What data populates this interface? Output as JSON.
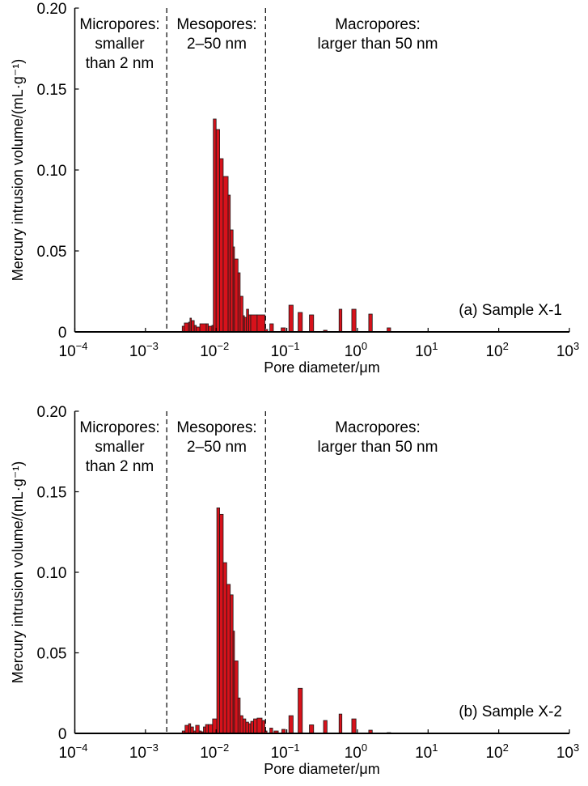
{
  "chart_data": [
    {
      "type": "bar",
      "panel_label": "(a) Sample X-1",
      "xlabel": "Pore diameter/μm",
      "ylabel": "Mercury intrusion volume/(mL·g⁻¹)",
      "x_scale": "log10",
      "xlim_log10": [
        -4,
        3
      ],
      "ylim": [
        0,
        0.2
      ],
      "x_ticks": [
        {
          "base": "10",
          "exp": "−4"
        },
        {
          "base": "10",
          "exp": "−3"
        },
        {
          "base": "10",
          "exp": "−2"
        },
        {
          "base": "10",
          "exp": "−1"
        },
        {
          "base": "10",
          "exp": "0"
        },
        {
          "base": "10",
          "exp": "1"
        },
        {
          "base": "10",
          "exp": "2"
        },
        {
          "base": "10",
          "exp": "3"
        }
      ],
      "y_ticks": [
        "0",
        "0.05",
        "0.10",
        "0.15",
        "0.20"
      ],
      "y_tick_values": [
        0,
        0.05,
        0.1,
        0.15,
        0.2
      ],
      "boundaries_um": [
        0.002,
        0.05
      ],
      "regions": [
        {
          "lines": [
            "Micropores:",
            "smaller",
            "than 2 nm"
          ]
        },
        {
          "lines": [
            "Mesopores:",
            "2–50 nm"
          ]
        },
        {
          "lines": [
            "Macropores:",
            "larger than 50 nm"
          ]
        }
      ],
      "bar_format": "[log10 diameter lo (μm), log10 diameter hi (μm), volume mL/g]",
      "bars": [
        [
          -2.48,
          -2.45,
          0.0035
        ],
        [
          -2.45,
          -2.39,
          0.0055
        ],
        [
          -2.39,
          -2.37,
          0.006
        ],
        [
          -2.37,
          -2.35,
          0.0085
        ],
        [
          -2.35,
          -2.31,
          0.007
        ],
        [
          -2.31,
          -2.28,
          0.004
        ],
        [
          -2.28,
          -2.23,
          0.003
        ],
        [
          -2.23,
          -2.14,
          0.005
        ],
        [
          -2.14,
          -2.11,
          0.005
        ],
        [
          -2.11,
          -2.06,
          0.0035
        ],
        [
          -2.06,
          -2.04,
          0.004
        ],
        [
          -2.04,
          -2.0,
          0.1315
        ],
        [
          -2.0,
          -1.95,
          0.125
        ],
        [
          -1.95,
          -1.9,
          0.107
        ],
        [
          -1.9,
          -1.83,
          0.096
        ],
        [
          -1.83,
          -1.8,
          0.0845
        ],
        [
          -1.8,
          -1.76,
          0.063
        ],
        [
          -1.76,
          -1.74,
          0.0525
        ],
        [
          -1.74,
          -1.69,
          0.045
        ],
        [
          -1.69,
          -1.66,
          0.0365
        ],
        [
          -1.66,
          -1.62,
          0.022
        ],
        [
          -1.62,
          -1.6,
          0.01
        ],
        [
          -1.6,
          -1.57,
          0.009
        ],
        [
          -1.57,
          -1.54,
          0.014
        ],
        [
          -1.54,
          -1.51,
          0.0105
        ],
        [
          -1.51,
          -1.42,
          0.0105
        ],
        [
          -1.42,
          -1.31,
          0.0105
        ],
        [
          -1.31,
          -1.27,
          0.0015
        ],
        [
          -1.24,
          -1.19,
          0.005
        ],
        [
          -1.08,
          -1.02,
          0.0025
        ],
        [
          -0.97,
          -0.91,
          0.0165
        ],
        [
          -0.84,
          -0.78,
          0.012
        ],
        [
          -0.68,
          -0.62,
          0.0105
        ],
        [
          -0.48,
          -0.43,
          0.001
        ],
        [
          -0.26,
          -0.22,
          0.014
        ],
        [
          -0.08,
          -0.02,
          0.014
        ],
        [
          0.16,
          0.21,
          0.011
        ],
        [
          0.42,
          0.47,
          0.0025
        ]
      ],
      "bar_color": "#d7121b"
    },
    {
      "type": "bar",
      "panel_label": "(b) Sample X-2",
      "xlabel": "Pore diameter/μm",
      "ylabel": "Mercury intrusion volume/(mL·g⁻¹)",
      "x_scale": "log10",
      "xlim_log10": [
        -4,
        3
      ],
      "ylim": [
        0,
        0.2
      ],
      "x_ticks": [
        {
          "base": "10",
          "exp": "−4"
        },
        {
          "base": "10",
          "exp": "−3"
        },
        {
          "base": "10",
          "exp": "−2"
        },
        {
          "base": "10",
          "exp": "−1"
        },
        {
          "base": "10",
          "exp": "0"
        },
        {
          "base": "10",
          "exp": "1"
        },
        {
          "base": "10",
          "exp": "2"
        },
        {
          "base": "10",
          "exp": "3"
        }
      ],
      "y_ticks": [
        "0",
        "0.05",
        "0.10",
        "0.15",
        "0.20"
      ],
      "y_tick_values": [
        0,
        0.05,
        0.1,
        0.15,
        0.2
      ],
      "boundaries_um": [
        0.002,
        0.05
      ],
      "regions": [
        {
          "lines": [
            "Micropores:",
            "smaller",
            "than 2 nm"
          ]
        },
        {
          "lines": [
            "Mesopores:",
            "2–50 nm"
          ]
        },
        {
          "lines": [
            "Macropores:",
            "larger than 50 nm"
          ]
        }
      ],
      "bar_format": "[log10 diameter lo (μm), log10 diameter hi (μm), volume mL/g]",
      "bars": [
        [
          -2.48,
          -2.44,
          0.0015
        ],
        [
          -2.44,
          -2.39,
          0.005
        ],
        [
          -2.39,
          -2.36,
          0.006
        ],
        [
          -2.36,
          -2.32,
          0.004
        ],
        [
          -2.32,
          -2.29,
          0.0015
        ],
        [
          -2.29,
          -2.24,
          0.005
        ],
        [
          -2.24,
          -2.21,
          0.0015
        ],
        [
          -2.21,
          -2.18,
          0.001
        ],
        [
          -2.18,
          -2.15,
          0.004
        ],
        [
          -2.15,
          -2.11,
          0.0055
        ],
        [
          -2.11,
          -2.05,
          0.0055
        ],
        [
          -2.05,
          -1.99,
          0.009
        ],
        [
          -1.99,
          -1.95,
          0.14
        ],
        [
          -1.95,
          -1.9,
          0.136
        ],
        [
          -1.9,
          -1.85,
          0.106
        ],
        [
          -1.85,
          -1.8,
          0.0925
        ],
        [
          -1.8,
          -1.76,
          0.086
        ],
        [
          -1.76,
          -1.74,
          0.0635
        ],
        [
          -1.74,
          -1.69,
          0.045
        ],
        [
          -1.69,
          -1.66,
          0.022
        ],
        [
          -1.66,
          -1.62,
          0.011
        ],
        [
          -1.62,
          -1.58,
          0.009
        ],
        [
          -1.58,
          -1.54,
          0.007
        ],
        [
          -1.54,
          -1.51,
          0.006
        ],
        [
          -1.51,
          -1.47,
          0.0075
        ],
        [
          -1.47,
          -1.42,
          0.009
        ],
        [
          -1.42,
          -1.35,
          0.0095
        ],
        [
          -1.35,
          -1.31,
          0.008
        ],
        [
          -1.31,
          -1.28,
          0.0015
        ],
        [
          -1.24,
          -1.2,
          0.0033
        ],
        [
          -1.18,
          -1.12,
          0.0015
        ],
        [
          -1.07,
          -1.02,
          0.0025
        ],
        [
          -0.97,
          -0.91,
          0.011
        ],
        [
          -0.84,
          -0.78,
          0.028
        ],
        [
          -0.68,
          -0.62,
          0.0053
        ],
        [
          -0.48,
          -0.43,
          0.008
        ],
        [
          -0.26,
          -0.22,
          0.012
        ],
        [
          -0.08,
          -0.02,
          0.009
        ],
        [
          0.16,
          0.21,
          0.002
        ],
        [
          0.42,
          0.47,
          0.0005
        ]
      ],
      "bar_color": "#d7121b"
    }
  ]
}
